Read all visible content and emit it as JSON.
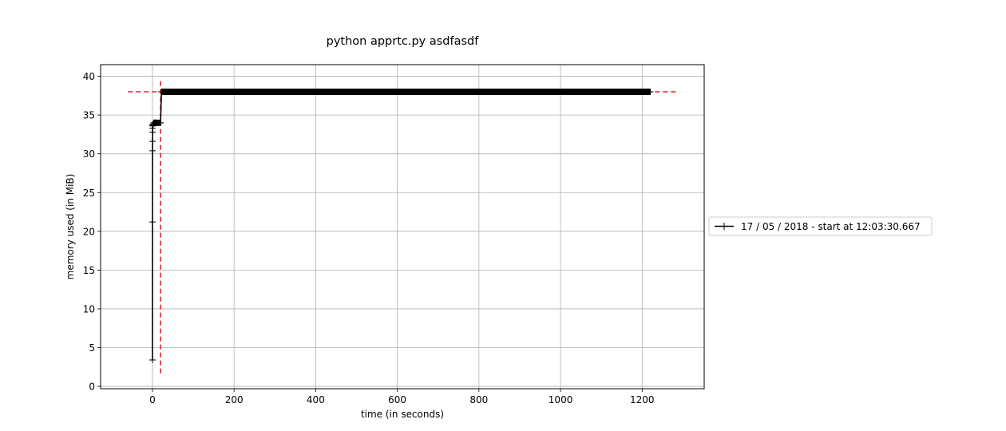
{
  "chart_data": {
    "type": "line",
    "title": "python apprtc.py asdfasdf",
    "xlabel": "time (in seconds)",
    "ylabel": "memory used (in MiB)",
    "xlim": [
      -127,
      1352
    ],
    "ylim": [
      -0.3,
      41.5
    ],
    "xticks": [
      0,
      200,
      400,
      600,
      800,
      1000,
      1200
    ],
    "yticks": [
      0,
      5,
      10,
      15,
      20,
      25,
      30,
      35,
      40
    ],
    "grid": true,
    "legend_position": "outside-right",
    "series": [
      {
        "name": "17 / 05 / 2018 - start at 12:03:30.667",
        "color": "#000000",
        "marker": "+",
        "x": [
          0,
          0.1,
          0.2,
          0.3,
          0.4,
          0.5,
          0.6,
          0.8,
          1.0,
          1.5,
          2,
          3,
          4,
          5,
          6,
          7,
          8,
          9,
          10,
          12,
          14,
          16,
          18,
          20,
          22,
          25,
          30,
          40,
          50,
          100,
          200,
          300,
          400,
          500,
          600,
          700,
          800,
          900,
          1000,
          1100,
          1200,
          1220
        ],
        "y": [
          3.4,
          21.2,
          30.4,
          31.6,
          32.8,
          33.3,
          33.6,
          33.7,
          33.8,
          33.8,
          33.8,
          34.0,
          34.0,
          34.0,
          34.0,
          34.0,
          34.0,
          34.0,
          34.0,
          34.0,
          34.0,
          34.0,
          34.0,
          34.0,
          38.0,
          38.0,
          38.0,
          38.0,
          38.0,
          38.0,
          38.0,
          38.0,
          38.0,
          38.0,
          38.0,
          38.0,
          38.0,
          38.0,
          38.0,
          38.0,
          38.0,
          38.0
        ]
      }
    ],
    "reference_lines": [
      {
        "orientation": "horizontal",
        "value": 38.0,
        "from": -60,
        "to": 1282,
        "color": "#d62728",
        "style": "dashed"
      },
      {
        "orientation": "vertical",
        "value": 20,
        "from": 1.7,
        "to": 39.6,
        "color": "#d62728",
        "style": "dashed"
      }
    ]
  }
}
